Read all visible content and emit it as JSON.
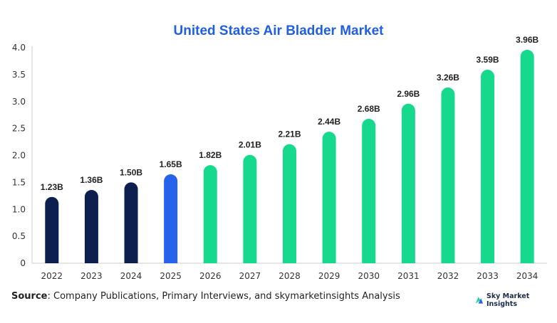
{
  "chart_data": {
    "type": "bar",
    "title": "United States Air Bladder Market",
    "xlabel": "",
    "ylabel": "",
    "categories": [
      "2022",
      "2023",
      "2024",
      "2025",
      "2026",
      "2027",
      "2028",
      "2029",
      "2030",
      "2031",
      "2032",
      "2033",
      "2034"
    ],
    "values": [
      1.23,
      1.36,
      1.5,
      1.65,
      1.82,
      2.01,
      2.21,
      2.44,
      2.68,
      2.96,
      3.26,
      3.59,
      3.96
    ],
    "data_labels": [
      "1.23B",
      "1.36B",
      "1.50B",
      "1.65B",
      "1.82B",
      "2.01B",
      "2.21B",
      "2.44B",
      "2.68B",
      "2.96B",
      "3.26B",
      "3.59B",
      "3.96B"
    ],
    "ylim": [
      0,
      4.0
    ],
    "yticks": [
      "0",
      "0.5",
      "1.0",
      "1.5",
      "2.0",
      "2.5",
      "3.0",
      "3.5",
      "4.0"
    ],
    "grid": false,
    "legend": "none",
    "colors": {
      "historical": "#0d1f4f",
      "current": "#2563eb",
      "forecast": "#17d98e",
      "title": "#1f5fe0",
      "axis": "#cccccc"
    },
    "bar_color_keys": [
      "historical",
      "historical",
      "historical",
      "current",
      "forecast",
      "forecast",
      "forecast",
      "forecast",
      "forecast",
      "forecast",
      "forecast",
      "forecast",
      "forecast"
    ]
  },
  "footer": {
    "source_label": "Source",
    "source_text": ": Company Publications, Primary Interviews, and skymarketinsights Analysis",
    "brand_name": "Sky Market Insights",
    "brand_icon": "sky-market-insights-logo-icon"
  }
}
